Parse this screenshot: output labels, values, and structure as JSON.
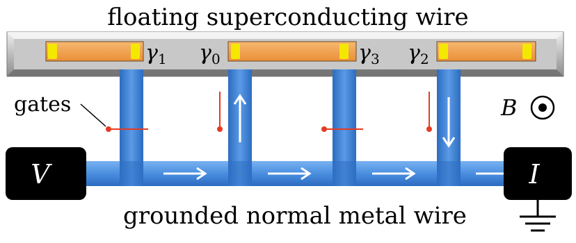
{
  "title": "floating superconducting wire",
  "bottom_label": "grounded normal metal wire",
  "gates_label": "gates",
  "voltage_label": "V",
  "current_label": "I",
  "field_label": "B",
  "majoranas": [
    {
      "symbol": "γ",
      "sub": "1"
    },
    {
      "symbol": "γ",
      "sub": "0"
    },
    {
      "symbol": "γ",
      "sub": "3"
    },
    {
      "symbol": "γ",
      "sub": "2"
    }
  ],
  "colors": {
    "superconductor_frame": "#b9b9b9",
    "island": "#f2a24f",
    "majorana_end": "#f5e800",
    "normal_wire": "#4f8fdc",
    "gate": "#e53a22",
    "terminal": "#000000",
    "arrow": "#ffffff"
  },
  "icons": [
    "field-out-of-page-icon",
    "ground-icon",
    "flow-arrow-icon"
  ]
}
